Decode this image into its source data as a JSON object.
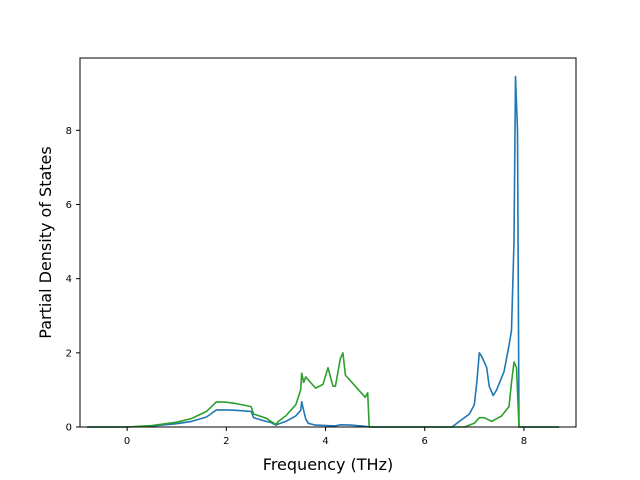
{
  "chart_data": {
    "type": "line",
    "title": "",
    "xlabel": "Frequency (THz)",
    "ylabel": "Partial Density of States",
    "xlim": [
      -0.95,
      9.05
    ],
    "ylim": [
      0,
      9.95
    ],
    "x_ticks": [
      0,
      2,
      4,
      6,
      8
    ],
    "y_ticks": [
      0,
      2,
      4,
      6,
      8
    ],
    "grid": false,
    "legend": "none",
    "series": [
      {
        "color": "#1f77b4",
        "points": [
          [
            -0.8,
            0
          ],
          [
            0.0,
            0.0
          ],
          [
            0.5,
            0.03
          ],
          [
            1.0,
            0.09
          ],
          [
            1.3,
            0.15
          ],
          [
            1.6,
            0.27
          ],
          [
            1.8,
            0.46
          ],
          [
            2.0,
            0.46
          ],
          [
            2.2,
            0.45
          ],
          [
            2.5,
            0.42
          ],
          [
            2.55,
            0.25
          ],
          [
            2.8,
            0.15
          ],
          [
            2.9,
            0.12
          ],
          [
            3.0,
            0.05
          ],
          [
            3.05,
            0.08
          ],
          [
            3.2,
            0.15
          ],
          [
            3.4,
            0.3
          ],
          [
            3.5,
            0.45
          ],
          [
            3.52,
            0.68
          ],
          [
            3.55,
            0.5
          ],
          [
            3.6,
            0.22
          ],
          [
            3.65,
            0.1
          ],
          [
            3.8,
            0.05
          ],
          [
            4.0,
            0.04
          ],
          [
            4.2,
            0.03
          ],
          [
            4.3,
            0.06
          ],
          [
            4.5,
            0.05
          ],
          [
            4.8,
            0.02
          ],
          [
            4.9,
            0.0
          ],
          [
            6.0,
            0.0
          ],
          [
            6.55,
            0.0
          ],
          [
            6.7,
            0.15
          ],
          [
            6.9,
            0.35
          ],
          [
            7.0,
            0.6
          ],
          [
            7.05,
            1.2
          ],
          [
            7.1,
            2.0
          ],
          [
            7.15,
            1.9
          ],
          [
            7.25,
            1.6
          ],
          [
            7.3,
            1.1
          ],
          [
            7.38,
            0.85
          ],
          [
            7.45,
            1.0
          ],
          [
            7.6,
            1.5
          ],
          [
            7.7,
            2.2
          ],
          [
            7.75,
            2.6
          ],
          [
            7.8,
            5.0
          ],
          [
            7.83,
            9.45
          ],
          [
            7.87,
            8.0
          ],
          [
            7.9,
            0.0
          ],
          [
            8.0,
            0.0
          ],
          [
            8.7,
            0.0
          ]
        ]
      },
      {
        "color": "#2ca02c",
        "points": [
          [
            -0.8,
            0
          ],
          [
            0.0,
            0.0
          ],
          [
            0.5,
            0.04
          ],
          [
            1.0,
            0.13
          ],
          [
            1.3,
            0.23
          ],
          [
            1.6,
            0.42
          ],
          [
            1.8,
            0.68
          ],
          [
            2.0,
            0.67
          ],
          [
            2.2,
            0.63
          ],
          [
            2.5,
            0.55
          ],
          [
            2.55,
            0.35
          ],
          [
            2.8,
            0.24
          ],
          [
            2.9,
            0.15
          ],
          [
            3.0,
            0.07
          ],
          [
            3.05,
            0.15
          ],
          [
            3.2,
            0.3
          ],
          [
            3.4,
            0.6
          ],
          [
            3.5,
            1.0
          ],
          [
            3.52,
            1.45
          ],
          [
            3.56,
            1.2
          ],
          [
            3.6,
            1.35
          ],
          [
            3.7,
            1.2
          ],
          [
            3.8,
            1.05
          ],
          [
            3.95,
            1.15
          ],
          [
            4.05,
            1.6
          ],
          [
            4.15,
            1.1
          ],
          [
            4.2,
            1.1
          ],
          [
            4.3,
            1.85
          ],
          [
            4.35,
            2.0
          ],
          [
            4.4,
            1.4
          ],
          [
            4.6,
            1.1
          ],
          [
            4.8,
            0.8
          ],
          [
            4.85,
            0.92
          ],
          [
            4.88,
            0.0
          ],
          [
            5.5,
            0.0
          ],
          [
            6.8,
            0.0
          ],
          [
            7.0,
            0.1
          ],
          [
            7.1,
            0.25
          ],
          [
            7.2,
            0.25
          ],
          [
            7.35,
            0.15
          ],
          [
            7.55,
            0.3
          ],
          [
            7.7,
            0.55
          ],
          [
            7.75,
            1.2
          ],
          [
            7.8,
            1.75
          ],
          [
            7.85,
            1.6
          ],
          [
            7.9,
            0.0
          ],
          [
            8.7,
            0.0
          ]
        ]
      }
    ]
  }
}
